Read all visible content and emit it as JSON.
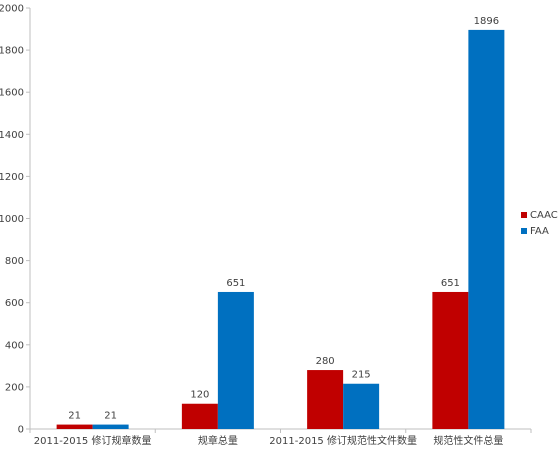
{
  "chart_data": {
    "type": "bar",
    "title": "",
    "xlabel": "",
    "ylabel": "",
    "categories": [
      "2011-2015 修订规章数量",
      "规章总量",
      "2011-2015 修订规范性文件数量",
      "规范性文件总量"
    ],
    "series": [
      {
        "name": "CAAC",
        "values": [
          21,
          120,
          280,
          651
        ],
        "color": "#C00000"
      },
      {
        "name": "FAA",
        "values": [
          21,
          651,
          215,
          1896
        ],
        "color": "#0070C0"
      }
    ],
    "ylim": [
      0,
      2000
    ],
    "yticks": [
      0,
      200,
      400,
      600,
      800,
      1000,
      1200,
      1400,
      1600,
      1800,
      2000
    ],
    "grid": false,
    "legend_position": "right",
    "axis_color": "#bfbfbf"
  }
}
